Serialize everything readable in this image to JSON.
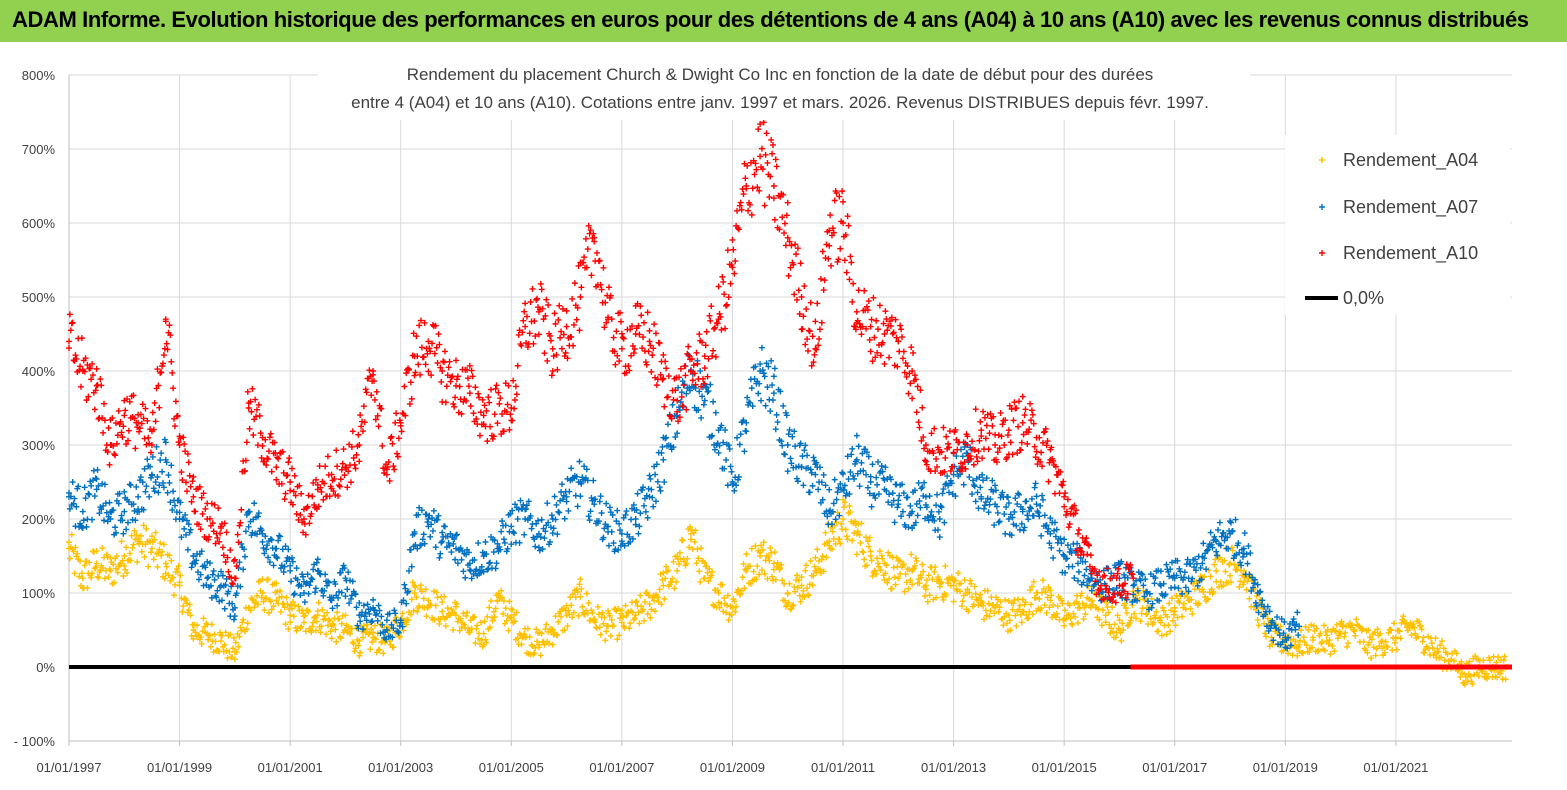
{
  "banner": {
    "text": "ADAM Informe. Evolution historique des performances en euros pour des détentions de 4 ans (A04) à 10 ans (A10) avec les revenus connus distribués",
    "color": "#92d050"
  },
  "chart_data": {
    "type": "scatter",
    "title_line1": "Rendement du placement Church & Dwight Co Inc en fonction de la date de début pour des durées",
    "title_line2": "entre 4 (A04) et 10 ans (A10).  Cotations entre janv. 1997 et mars. 2026. Revenus DISTRIBUES depuis févr. 1997.",
    "xlabel": "",
    "ylabel": "",
    "ylim": [
      -100,
      800
    ],
    "xlim": [
      1997.0,
      2023.1
    ],
    "y_ticks": [
      "800%",
      "700%",
      "600%",
      "500%",
      "400%",
      "300%",
      "200%",
      "100%",
      "0%",
      "- 100%"
    ],
    "y_tick_values": [
      800,
      700,
      600,
      500,
      400,
      300,
      200,
      100,
      0,
      -100
    ],
    "x_ticks": [
      "01/01/1997",
      "01/01/1999",
      "01/01/2001",
      "01/01/2003",
      "01/01/2005",
      "01/01/2007",
      "01/01/2009",
      "01/01/2011",
      "01/01/2013",
      "01/01/2015",
      "01/01/2017",
      "01/01/2019",
      "01/01/2021"
    ],
    "x_tick_values": [
      1997,
      1999,
      2001,
      2003,
      2005,
      2007,
      2009,
      2011,
      2013,
      2015,
      2017,
      2019,
      2021
    ],
    "legend_position": "top-right",
    "series": [
      {
        "name": "Rendement_A04",
        "color": "#ffc000",
        "marker": "+",
        "x": [
          1997.0,
          1997.25,
          1997.5,
          1997.75,
          1998.0,
          1998.25,
          1998.5,
          1998.75,
          1999.0,
          1999.25,
          1999.5,
          1999.75,
          2000.0,
          2000.25,
          2000.5,
          2000.75,
          2001.0,
          2001.25,
          2001.5,
          2001.75,
          2002.0,
          2002.25,
          2002.5,
          2002.75,
          2003.0,
          2003.25,
          2003.5,
          2003.75,
          2004.0,
          2004.25,
          2004.5,
          2004.75,
          2005.0,
          2005.25,
          2005.5,
          2005.75,
          2006.0,
          2006.25,
          2006.5,
          2006.75,
          2007.0,
          2007.25,
          2007.5,
          2007.75,
          2008.0,
          2008.25,
          2008.5,
          2008.75,
          2009.0,
          2009.25,
          2009.5,
          2009.75,
          2010.0,
          2010.25,
          2010.5,
          2010.75,
          2011.0,
          2011.25,
          2011.5,
          2011.75,
          2012.0,
          2012.25,
          2012.5,
          2012.75,
          2013.0,
          2013.25,
          2013.5,
          2013.75,
          2014.0,
          2014.25,
          2014.5,
          2014.75,
          2015.0,
          2015.25,
          2015.5,
          2015.75,
          2016.0,
          2016.25,
          2016.5,
          2016.75,
          2017.0,
          2017.25,
          2017.5,
          2017.75,
          2018.0,
          2018.25,
          2018.5,
          2018.75,
          2019.0,
          2019.25,
          2019.5,
          2019.75,
          2020.0,
          2020.25,
          2020.5,
          2020.75,
          2021.0,
          2021.25,
          2021.5,
          2021.75,
          2022.0,
          2022.25,
          2022.5,
          2022.75,
          2023.0
        ],
        "y": [
          160,
          120,
          140,
          130,
          150,
          170,
          160,
          140,
          110,
          50,
          45,
          35,
          20,
          80,
          100,
          90,
          70,
          60,
          70,
          55,
          50,
          35,
          40,
          35,
          60,
          100,
          90,
          75,
          70,
          50,
          45,
          90,
          65,
          40,
          30,
          50,
          70,
          95,
          65,
          55,
          60,
          70,
          85,
          110,
          130,
          180,
          120,
          100,
          80,
          130,
          150,
          140,
          100,
          110,
          130,
          170,
          200,
          180,
          150,
          140,
          120,
          130,
          110,
          115,
          110,
          100,
          85,
          80,
          70,
          75,
          100,
          90,
          65,
          80,
          90,
          70,
          50,
          90,
          80,
          60,
          75,
          90,
          105,
          130,
          140,
          130,
          80,
          40,
          35,
          30,
          40,
          35,
          45,
          50,
          30,
          35,
          40,
          55,
          40,
          20,
          10,
          -10,
          0,
          0,
          0
        ]
      },
      {
        "name": "Rendement_A07",
        "color": "#0070c0",
        "marker": "+",
        "x": [
          1997.0,
          1997.25,
          1997.5,
          1997.75,
          1998.0,
          1998.25,
          1998.5,
          1998.75,
          1999.0,
          1999.25,
          1999.5,
          1999.75,
          2000.0,
          2000.25,
          2000.5,
          2000.75,
          2001.0,
          2001.25,
          2001.5,
          2001.75,
          2002.0,
          2002.25,
          2002.5,
          2002.75,
          2003.0,
          2003.25,
          2003.5,
          2003.75,
          2004.0,
          2004.25,
          2004.5,
          2004.75,
          2005.0,
          2005.25,
          2005.5,
          2005.75,
          2006.0,
          2006.25,
          2006.5,
          2006.75,
          2007.0,
          2007.25,
          2007.5,
          2007.75,
          2008.0,
          2008.25,
          2008.5,
          2008.75,
          2009.0,
          2009.25,
          2009.5,
          2009.75,
          2010.0,
          2010.25,
          2010.5,
          2010.75,
          2011.0,
          2011.25,
          2011.5,
          2011.75,
          2012.0,
          2012.25,
          2012.5,
          2012.75,
          2013.0,
          2013.25,
          2013.5,
          2013.75,
          2014.0,
          2014.25,
          2014.5,
          2014.75,
          2015.0,
          2015.25,
          2015.5,
          2015.75,
          2016.0,
          2016.25,
          2016.5,
          2016.75,
          2017.0,
          2017.25,
          2017.5,
          2017.75,
          2018.0,
          2018.25,
          2018.5,
          2018.75,
          2019.0,
          2019.25
        ],
        "y": [
          230,
          210,
          240,
          200,
          210,
          230,
          260,
          280,
          200,
          150,
          120,
          110,
          80,
          210,
          180,
          160,
          130,
          100,
          130,
          90,
          120,
          70,
          80,
          50,
          60,
          180,
          200,
          170,
          160,
          140,
          150,
          160,
          190,
          200,
          180,
          200,
          230,
          250,
          220,
          190,
          180,
          200,
          230,
          280,
          340,
          400,
          360,
          320,
          250,
          330,
          400,
          370,
          300,
          270,
          260,
          210,
          240,
          280,
          250,
          240,
          220,
          210,
          230,
          200,
          260,
          280,
          230,
          220,
          200,
          210,
          220,
          180,
          150,
          140,
          120,
          110,
          120,
          110,
          100,
          110,
          120,
          120,
          140,
          170,
          180,
          160,
          100,
          60,
          40,
          55
        ]
      },
      {
        "name": "Rendement_A10",
        "color": "#ff0000",
        "marker": "+",
        "x": [
          1997.0,
          1997.25,
          1997.5,
          1997.75,
          1998.0,
          1998.25,
          1998.5,
          1998.75,
          1999.0,
          1999.25,
          1999.5,
          1999.75,
          2000.0,
          2000.25,
          2000.5,
          2000.75,
          2001.0,
          2001.25,
          2001.5,
          2001.75,
          2002.0,
          2002.25,
          2002.5,
          2002.75,
          2003.0,
          2003.25,
          2003.5,
          2003.75,
          2004.0,
          2004.25,
          2004.5,
          2005.0,
          2005.25,
          2005.5,
          2005.75,
          2006.0,
          2006.25,
          2006.5,
          2006.75,
          2007.0,
          2007.25,
          2007.5,
          2007.75,
          2008.0,
          2008.25,
          2008.5,
          2008.75,
          2009.0,
          2009.25,
          2009.5,
          2009.75,
          2010.0,
          2010.25,
          2010.5,
          2010.75,
          2011.0,
          2011.25,
          2011.5,
          2011.75,
          2012.0,
          2012.25,
          2012.5,
          2012.75,
          2013.0,
          2013.25,
          2013.5,
          2013.75,
          2014.0,
          2014.25,
          2014.5,
          2014.75,
          2015.0,
          2015.25,
          2015.5,
          2015.75,
          2016.0,
          2016.25
        ],
        "y": [
          440,
          400,
          380,
          300,
          340,
          330,
          300,
          470,
          300,
          230,
          200,
          190,
          120,
          350,
          310,
          270,
          250,
          200,
          240,
          260,
          270,
          300,
          400,
          260,
          330,
          420,
          440,
          400,
          380,
          370,
          340,
          350,
          460,
          480,
          430,
          460,
          500,
          580,
          470,
          430,
          450,
          440,
          390,
          360,
          400,
          420,
          470,
          540,
          650,
          690,
          650,
          580,
          500,
          430,
          590,
          600,
          480,
          460,
          450,
          440,
          400,
          300,
          290,
          290,
          300,
          320,
          300,
          320,
          330,
          310,
          280,
          230,
          180,
          130,
          110,
          110,
          120
        ]
      },
      {
        "name": "0,0%",
        "color": "#000000",
        "marker": "line",
        "x": [
          1997.0,
          2023.1
        ],
        "y": [
          0,
          0
        ]
      }
    ]
  }
}
